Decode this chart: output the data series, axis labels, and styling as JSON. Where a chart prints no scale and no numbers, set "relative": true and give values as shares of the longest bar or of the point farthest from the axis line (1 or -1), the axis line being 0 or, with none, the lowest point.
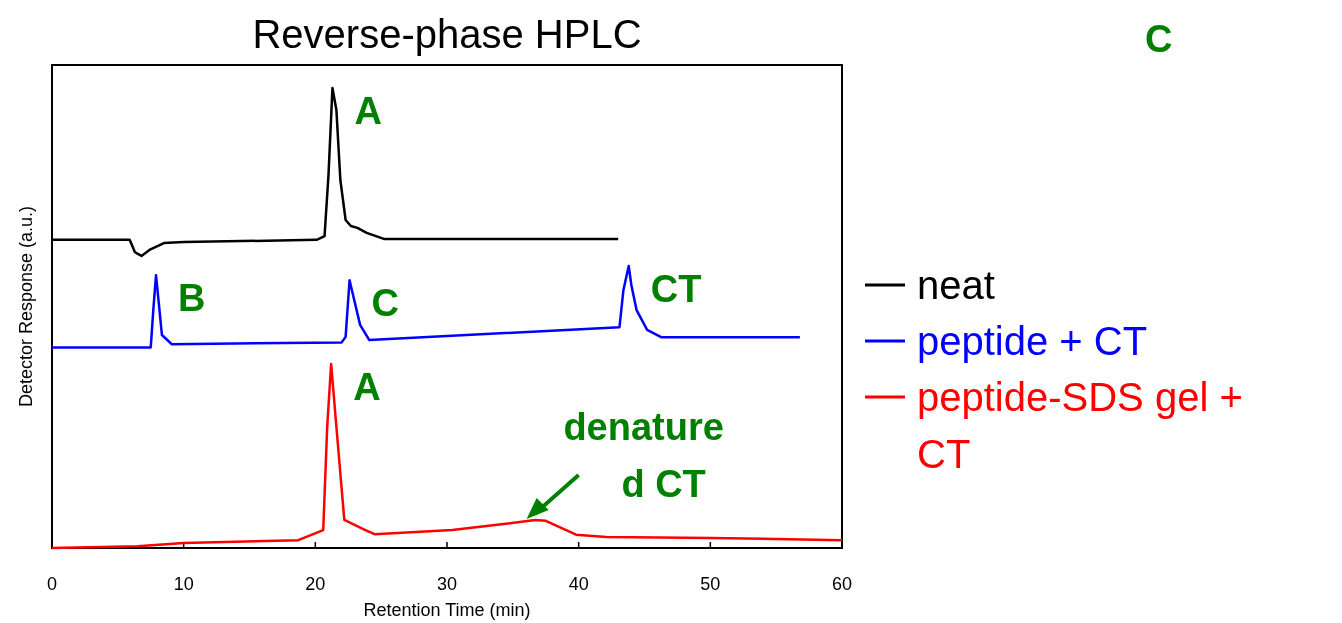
{
  "chart_data": {
    "type": "line",
    "title": "Reverse-phase HPLC",
    "xlabel": "Retention Time (min)",
    "ylabel": "Detector Response (a.u.)",
    "relative": true,
    "xlim": [
      0,
      60
    ],
    "xticks": [
      0,
      10,
      20,
      30,
      40,
      50,
      60
    ],
    "tick_labels": "x",
    "grid": false,
    "legend": "right",
    "marker": "none",
    "line_style": "solid",
    "series": [
      {
        "name": "neat",
        "color": "#000000",
        "x": [
          0,
          5.9,
          6.3,
          6.8,
          7.4,
          8.5,
          10,
          20.1,
          20.7,
          21.0,
          21.3,
          21.6,
          21.9,
          22.3,
          22.7,
          23.2,
          23.9,
          25.2,
          30,
          43
        ],
        "values": [
          0.67,
          0.67,
          0.643,
          0.635,
          0.648,
          0.663,
          0.665,
          0.67,
          0.678,
          0.811,
          1,
          0.952,
          0.8,
          0.713,
          0.7,
          0.696,
          0.685,
          0.672,
          0.672,
          0.672
        ]
      },
      {
        "name": "peptide + CT",
        "color": "#0000ff",
        "x": [
          0,
          7.5,
          7.7,
          7.9,
          8.35,
          9.1,
          22.0,
          22.3,
          22.6,
          23.4,
          24.1,
          43.1,
          43.4,
          43.8,
          44.0,
          44.4,
          45.2,
          46.3,
          56.8
        ],
        "values": [
          0.436,
          0.436,
          0.52,
          0.593,
          0.463,
          0.443,
          0.447,
          0.459,
          0.582,
          0.485,
          0.452,
          0.48,
          0.561,
          0.613,
          0.572,
          0.517,
          0.474,
          0.458,
          0.458
        ]
      },
      {
        "name": "peptide-SDS gel + CT",
        "color": "#ff0000",
        "x": [
          0,
          6.5,
          10,
          18.7,
          20.6,
          20.9,
          21.2,
          21.6,
          22.2,
          23.8,
          24.5,
          30.4,
          34.3,
          36.7,
          37.5,
          39.8,
          42.1,
          50,
          60
        ],
        "values": [
          0,
          0.004,
          0.011,
          0.017,
          0.039,
          0.263,
          0.4,
          0.263,
          0.061,
          0.039,
          0.03,
          0.039,
          0.052,
          0.061,
          0.059,
          0.029,
          0.024,
          0.022,
          0.017
        ]
      }
    ],
    "annotations": [
      {
        "text": "A",
        "x": 21.3,
        "y": 1
      },
      {
        "text": "B",
        "x": 7.9,
        "y": 0.593
      },
      {
        "text": "C",
        "x": 22.6,
        "y": 0.582
      },
      {
        "text": "CT",
        "x": 43.8,
        "y": 0.613
      },
      {
        "text": "A",
        "x": 21.2,
        "y": 0.4
      },
      {
        "text": "denature\nd CT",
        "x": 36.2,
        "y": 0.061
      },
      "C"
    ]
  }
}
